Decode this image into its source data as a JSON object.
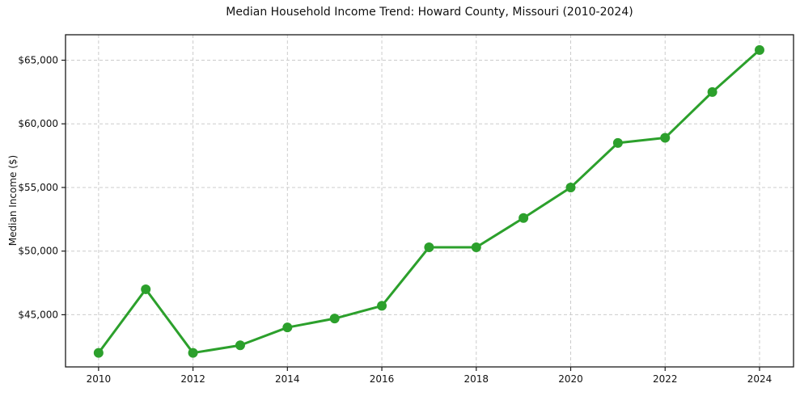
{
  "chart_data": {
    "type": "line",
    "title": "Median Household Income Trend: Howard County, Missouri (2010-2024)",
    "xlabel": "",
    "ylabel": "Median Income ($)",
    "x": [
      2010,
      2011,
      2012,
      2013,
      2014,
      2015,
      2016,
      2017,
      2018,
      2019,
      2020,
      2021,
      2022,
      2023,
      2024
    ],
    "series": [
      {
        "name": "Median Household Income",
        "values": [
          42000,
          47000,
          42000,
          42600,
          44000,
          44700,
          45700,
          50300,
          50300,
          52600,
          55000,
          58500,
          58900,
          62500,
          65800
        ]
      }
    ],
    "xlim": [
      2009.3,
      2024.72
    ],
    "ylim": [
      40900,
      67000
    ],
    "xticks": [
      2010,
      2012,
      2014,
      2016,
      2018,
      2020,
      2022,
      2024
    ],
    "yticks": [
      45000,
      50000,
      55000,
      60000,
      65000
    ],
    "ytick_labels": [
      "$45,000",
      "$50,000",
      "$55,000",
      "$60,000",
      "$65,000"
    ],
    "grid": true,
    "grid_style": "dashed",
    "legend": "none",
    "line_color": "#2ca02c",
    "marker_color": "#2ca02c",
    "marker": "circle",
    "grid_color": "#cccccc",
    "axis_color": "#1a1a1a",
    "background_color": "#ffffff"
  }
}
